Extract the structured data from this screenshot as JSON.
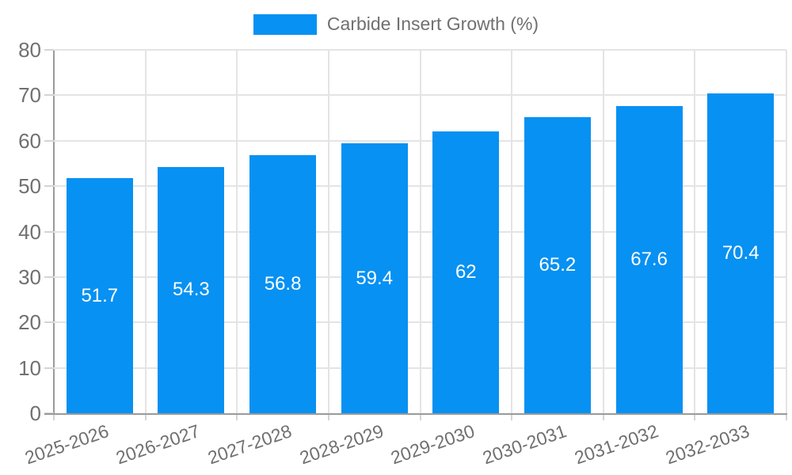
{
  "legend": {
    "label": "Carbide Insert Growth (%)",
    "position": "top"
  },
  "colors": {
    "bar": "#0791f2",
    "axis": "#9a9a9a",
    "grid": "#e4e4e4",
    "tick": "#d4d4d4",
    "text": "#707070",
    "bar_label": "#ffffff",
    "background": "#ffffff"
  },
  "chart_data": {
    "type": "bar",
    "title": "",
    "legend_entries": [
      "Carbide Insert Growth (%)"
    ],
    "legend_position": "top",
    "categories": [
      "2025-2026",
      "2026-2027",
      "2027-2028",
      "2028-2029",
      "2029-2030",
      "2030-2031",
      "2031-2032",
      "2032-2033"
    ],
    "series": [
      {
        "name": "Carbide Insert Growth (%)",
        "values": [
          51.7,
          54.3,
          56.8,
          59.4,
          62,
          65.2,
          67.6,
          70.4
        ]
      }
    ],
    "xlabel": "",
    "ylabel": "",
    "ylim": [
      0,
      80
    ],
    "ytick_step": 10,
    "grid": true,
    "value_labels_shown": true,
    "value_label_position": "center"
  }
}
